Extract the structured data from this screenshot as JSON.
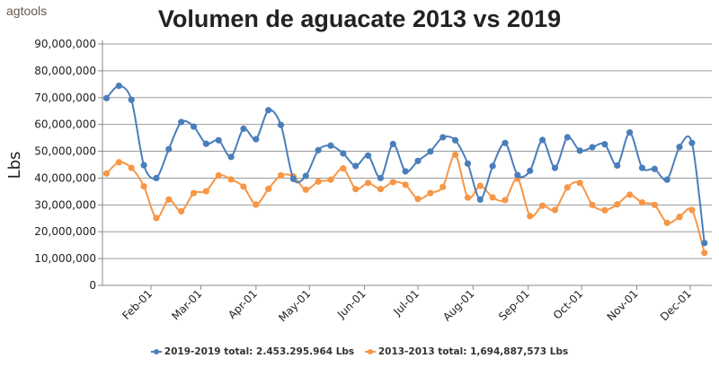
{
  "logo": {
    "text": "agtools"
  },
  "chart_data": {
    "type": "line",
    "title": "Volumen de aguacate 2013 vs 2019",
    "xlabel": "",
    "ylabel": "Lbs",
    "ylim": [
      0,
      90000000
    ],
    "yticks": [
      "0",
      "10,000,000",
      "20,000,000",
      "30,000,000",
      "40,000,000",
      "50,000,000",
      "60,000,000",
      "70,000,000",
      "80,000,000",
      "90,000,000"
    ],
    "x_unit": "day of year",
    "x_start_day": 7,
    "x_step_days": 7,
    "xticks": [
      {
        "label": "Feb-01",
        "day": 32
      },
      {
        "label": "Mar-01",
        "day": 60
      },
      {
        "label": "Apr-01",
        "day": 91
      },
      {
        "label": "May-01",
        "day": 121
      },
      {
        "label": "Jun-01",
        "day": 152
      },
      {
        "label": "Jul-01",
        "day": 182
      },
      {
        "label": "Aug-01",
        "day": 213
      },
      {
        "label": "Sep-01",
        "day": 244
      },
      {
        "label": "Oct-01",
        "day": 274
      },
      {
        "label": "Nov-01",
        "day": 305
      },
      {
        "label": "Dec-01",
        "day": 335
      }
    ],
    "grid": true,
    "legend_position": "bottom",
    "series": [
      {
        "name": "2019-2019 total: 2.453.295.964 Lbs",
        "color": "#4a7ebb",
        "values_millions": [
          69.8,
          74.4,
          69.2,
          44.8,
          40,
          50.8,
          60.9,
          59.2,
          52.8,
          54.1,
          47.9,
          58.4,
          54.5,
          65.3,
          59.8,
          39.7,
          40.8,
          50.4,
          52.1,
          49.2,
          44.5,
          48.4,
          40,
          52.7,
          42.5,
          46.4,
          49.9,
          55.2,
          54.1,
          45.4,
          32,
          44.5,
          53.1,
          41.1,
          42.7,
          54.2,
          43.8,
          55.2,
          50.2,
          51.5,
          52.6,
          44.7,
          57,
          43.8,
          43.4,
          39.4,
          51.6,
          53.1,
          15.8
        ]
      },
      {
        "name": "2013-2013 total: 1,694,887,573 Lbs",
        "color": "#f79646",
        "values_millions": [
          41.7,
          45.9,
          43.8,
          36.9,
          25.1,
          32,
          27.6,
          34.4,
          35.1,
          41,
          39.5,
          36.8,
          30.1,
          36,
          41,
          40.6,
          35.7,
          38.7,
          39.4,
          43.6,
          35.9,
          38.2,
          35.9,
          38.5,
          37.5,
          32.2,
          34.4,
          36.7,
          48.7,
          32.7,
          37.1,
          32.8,
          31.8,
          39.8,
          25.8,
          29.7,
          28.1,
          36.5,
          38.2,
          30,
          28,
          30.2,
          33.8,
          30.9,
          30,
          23.3,
          25.5,
          28.1,
          12.1
        ]
      }
    ]
  }
}
